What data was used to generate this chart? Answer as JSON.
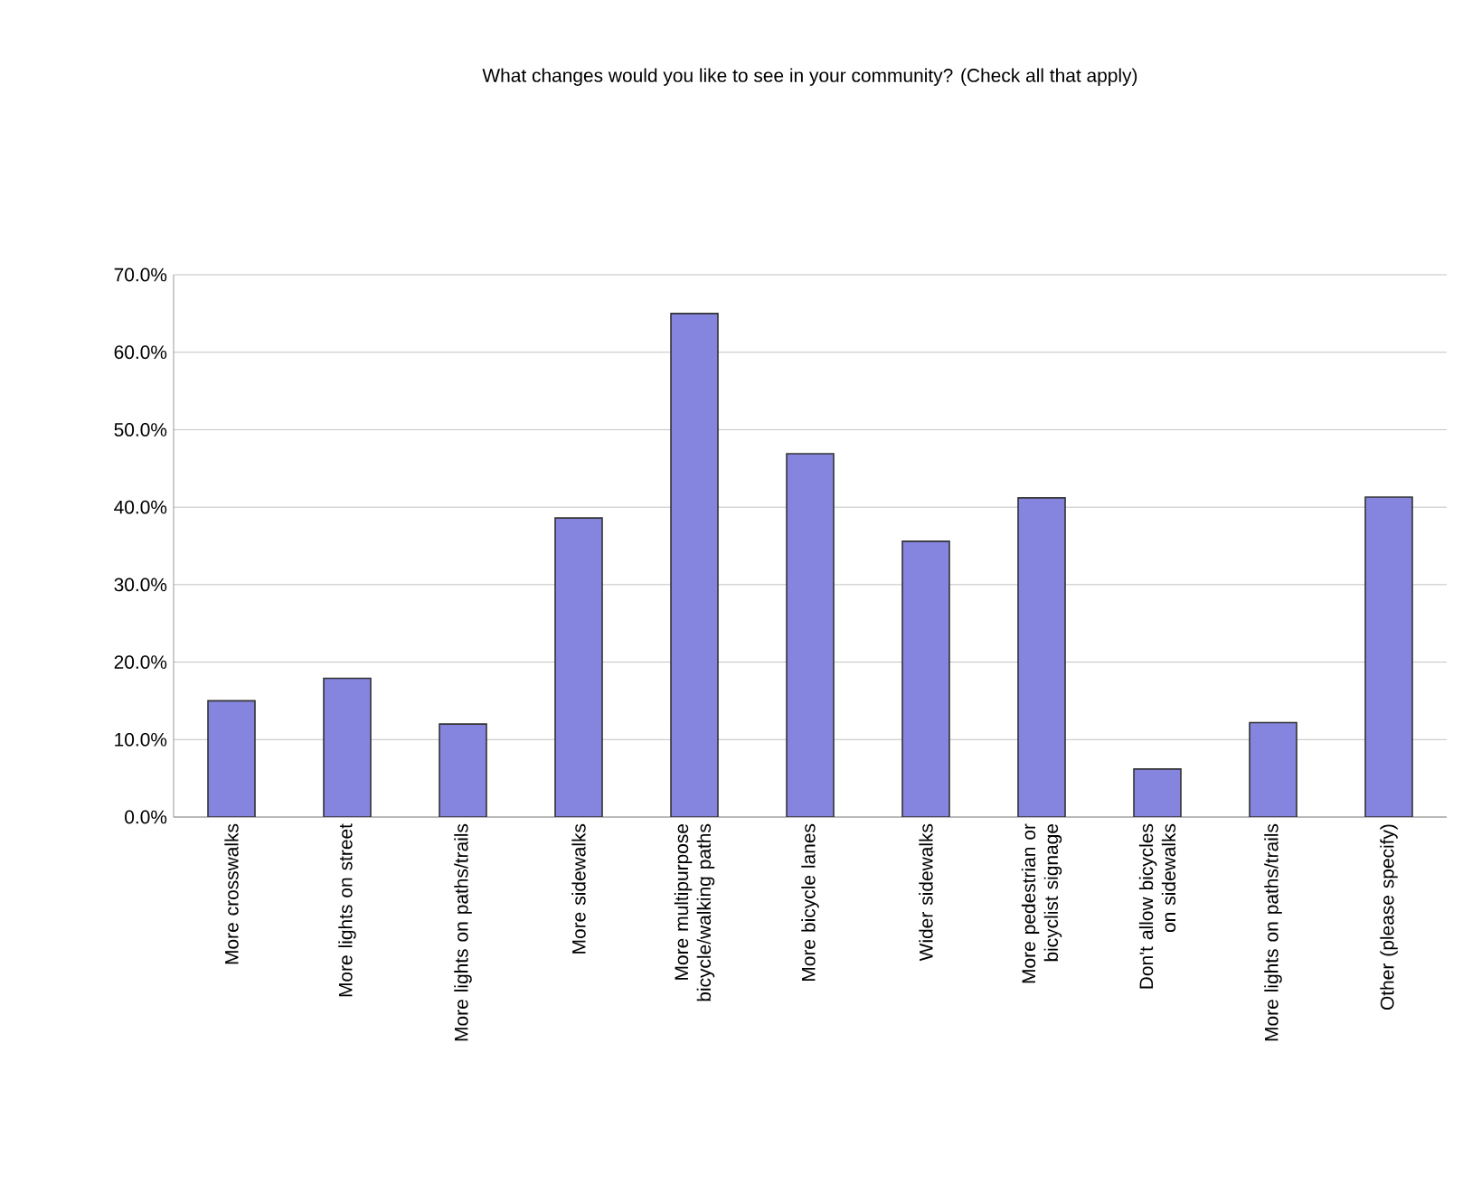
{
  "chart_data": {
    "type": "bar",
    "title": "What changes would you like to see in your community? (Check all that apply)",
    "categories": [
      "More crosswalks",
      "More lights on street",
      "More lights on paths/trails",
      "More sidewalks",
      "More multipurpose bicycle/walking paths",
      "More bicycle lanes",
      "Wider sidewalks",
      "More pedestrian or bicyclist signage",
      "Don't allow bicycles on sidewalks",
      "More lights on paths/trails",
      "Other (please specify)"
    ],
    "values": [
      15.0,
      17.9,
      12.0,
      38.6,
      65.0,
      46.9,
      35.6,
      41.2,
      6.2,
      12.2,
      41.3
    ],
    "color": "#8585e0",
    "ylim": [
      0,
      70
    ],
    "yticks": [
      {
        "value": 0,
        "label": "0.0%"
      },
      {
        "value": 10,
        "label": "10.0%"
      },
      {
        "value": 20,
        "label": "20.0%"
      },
      {
        "value": 30,
        "label": "30.0%"
      },
      {
        "value": 40,
        "label": "40.0%"
      },
      {
        "value": 50,
        "label": "50.0%"
      },
      {
        "value": 60,
        "label": "60.0%"
      },
      {
        "value": 70,
        "label": "70.0%"
      }
    ],
    "grid": "y"
  }
}
